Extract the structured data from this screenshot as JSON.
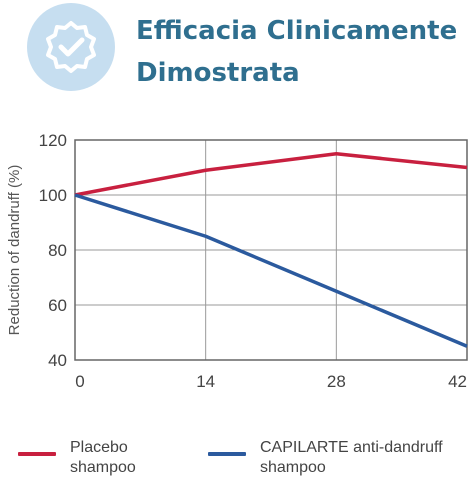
{
  "header": {
    "title_line1": "Efficacia Clinicamente",
    "title_line2": "Dimostrata",
    "badge_icon": "verified-check-badge-icon",
    "colors": {
      "title": "#2f6f8f",
      "badge_bg": "#c6def0"
    }
  },
  "chart_data": {
    "type": "line",
    "x": [
      0,
      14,
      28,
      42
    ],
    "xticks": [
      "0",
      "14",
      "28",
      "42"
    ],
    "yticks": [
      "40",
      "60",
      "80",
      "100",
      "120"
    ],
    "xlim": [
      0,
      42
    ],
    "ylim": [
      40,
      120
    ],
    "ylabel": "Reduction of dandruff (%)",
    "xlabel": "",
    "grid": true,
    "legend_position": "bottom",
    "series": [
      {
        "name": "Placebo shampoo",
        "legend_line1": "Placebo",
        "legend_line2": "shampoo",
        "color": "#c8203f",
        "values": [
          100,
          109,
          115,
          110
        ]
      },
      {
        "name": "CAPILARTE anti-dandruff shampoo",
        "legend_line1": "CAPILARTE anti-dandruff",
        "legend_line2": "shampoo",
        "color": "#2b5a9e",
        "values": [
          100,
          85,
          65,
          45
        ]
      }
    ]
  }
}
